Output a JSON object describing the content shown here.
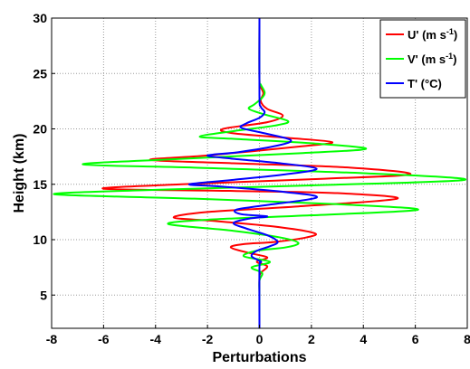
{
  "chart_data": {
    "type": "line",
    "xlabel": "Perturbations",
    "ylabel": "Height (km)",
    "xlim": [
      -8,
      8
    ],
    "ylim": [
      2,
      30
    ],
    "xticks": [
      -8,
      -6,
      -4,
      -2,
      0,
      2,
      4,
      6,
      8
    ],
    "yticks": [
      5,
      10,
      15,
      20,
      25,
      30
    ],
    "grid": true,
    "legend_position": "top-right",
    "series": [
      {
        "name": "U' (m s-1)",
        "legend_main": "U' (m s",
        "legend_sup": "-1",
        "legend_end": ")",
        "color": "#ff0000",
        "points": [
          [
            0,
            2
          ],
          [
            0,
            5
          ],
          [
            0,
            6.5
          ],
          [
            0.05,
            7
          ],
          [
            0.3,
            7.6
          ],
          [
            -0.1,
            8.0
          ],
          [
            0.3,
            8.4
          ],
          [
            -0.4,
            8.8
          ],
          [
            -1.1,
            9.3
          ],
          [
            -0.6,
            9.6
          ],
          [
            0.6,
            9.8
          ],
          [
            1.8,
            10.2
          ],
          [
            2.1,
            10.6
          ],
          [
            0.5,
            11.2
          ],
          [
            -1.8,
            11.7
          ],
          [
            -3.3,
            12.0
          ],
          [
            -2.0,
            12.5
          ],
          [
            1.5,
            13.0
          ],
          [
            5.3,
            13.7
          ],
          [
            3.0,
            14.2
          ],
          [
            -1.0,
            14.4
          ],
          [
            -6.0,
            14.6
          ],
          [
            -3.0,
            15.0
          ],
          [
            2.5,
            15.5
          ],
          [
            5.8,
            15.9
          ],
          [
            3.5,
            16.5
          ],
          [
            -1.0,
            16.9
          ],
          [
            -4.2,
            17.2
          ],
          [
            -2.0,
            17.6
          ],
          [
            1.5,
            18.4
          ],
          [
            2.8,
            18.8
          ],
          [
            1.0,
            19.2
          ],
          [
            -1.0,
            19.6
          ],
          [
            -1.4,
            20.0
          ],
          [
            0.3,
            20.6
          ],
          [
            0.9,
            21.2
          ],
          [
            0.3,
            21.8
          ],
          [
            0.05,
            22.5
          ],
          [
            0.15,
            23.2
          ],
          [
            0.05,
            23.8
          ],
          [
            0,
            24.5
          ],
          [
            0,
            30
          ]
        ]
      },
      {
        "name": "V' (m s-1)",
        "legend_main": "V' (m s",
        "legend_sup": "-1",
        "legend_end": ")",
        "color": "#00ff00",
        "points": [
          [
            0,
            2
          ],
          [
            0,
            5
          ],
          [
            0,
            6.3
          ],
          [
            0.1,
            7.0
          ],
          [
            -0.3,
            7.5
          ],
          [
            0.4,
            8.0
          ],
          [
            -0.6,
            8.5
          ],
          [
            -0.1,
            9.0
          ],
          [
            1.0,
            9.3
          ],
          [
            1.5,
            9.7
          ],
          [
            0.8,
            10.2
          ],
          [
            -1.0,
            10.8
          ],
          [
            -3.5,
            11.4
          ],
          [
            -2.0,
            11.8
          ],
          [
            2.0,
            12.2
          ],
          [
            6.1,
            12.7
          ],
          [
            3.0,
            13.2
          ],
          [
            -2.5,
            13.7
          ],
          [
            -7.9,
            14.1
          ],
          [
            -4.0,
            14.5
          ],
          [
            2.0,
            14.9
          ],
          [
            7.9,
            15.4
          ],
          [
            4.0,
            16.0
          ],
          [
            -2.5,
            16.5
          ],
          [
            -6.8,
            16.8
          ],
          [
            -3.0,
            17.3
          ],
          [
            1.5,
            17.8
          ],
          [
            4.1,
            18.2
          ],
          [
            2.0,
            18.7
          ],
          [
            -1.0,
            19.1
          ],
          [
            -2.3,
            19.3
          ],
          [
            -1.0,
            19.8
          ],
          [
            0.6,
            20.3
          ],
          [
            1.1,
            20.7
          ],
          [
            0.2,
            21.3
          ],
          [
            -0.4,
            21.8
          ],
          [
            -0.2,
            22.2
          ],
          [
            0.1,
            22.8
          ],
          [
            0.2,
            23.3
          ],
          [
            0.05,
            24.0
          ],
          [
            0,
            24.5
          ],
          [
            0,
            30
          ]
        ]
      },
      {
        "name": "T' (°C)",
        "legend_main": "T' (°C)",
        "legend_sup": "",
        "legend_end": "",
        "color": "#0000ff",
        "points": [
          [
            0,
            2
          ],
          [
            0,
            7.5
          ],
          [
            0.05,
            8.0
          ],
          [
            -0.3,
            8.5
          ],
          [
            -0.1,
            9.0
          ],
          [
            0.4,
            9.4
          ],
          [
            0.7,
            9.8
          ],
          [
            0.3,
            10.4
          ],
          [
            -0.5,
            11.0
          ],
          [
            -1.0,
            11.5
          ],
          [
            -0.4,
            11.9
          ],
          [
            0.3,
            12.1
          ],
          [
            -0.7,
            12.3
          ],
          [
            -0.9,
            12.7
          ],
          [
            0.2,
            13.1
          ],
          [
            2.2,
            13.8
          ],
          [
            1.0,
            14.3
          ],
          [
            -1.5,
            14.8
          ],
          [
            -2.7,
            15.0
          ],
          [
            -1.0,
            15.4
          ],
          [
            1.0,
            15.9
          ],
          [
            2.2,
            16.4
          ],
          [
            0.8,
            16.9
          ],
          [
            -1.0,
            17.3
          ],
          [
            -2.0,
            17.6
          ],
          [
            -0.8,
            17.9
          ],
          [
            0.7,
            18.5
          ],
          [
            1.2,
            19.0
          ],
          [
            0.2,
            19.6
          ],
          [
            -0.7,
            20.1
          ],
          [
            -0.5,
            20.5
          ],
          [
            0,
            21.0
          ],
          [
            0.2,
            21.5
          ],
          [
            0.05,
            22.0
          ],
          [
            0,
            23.0
          ],
          [
            0,
            30
          ]
        ]
      }
    ]
  }
}
